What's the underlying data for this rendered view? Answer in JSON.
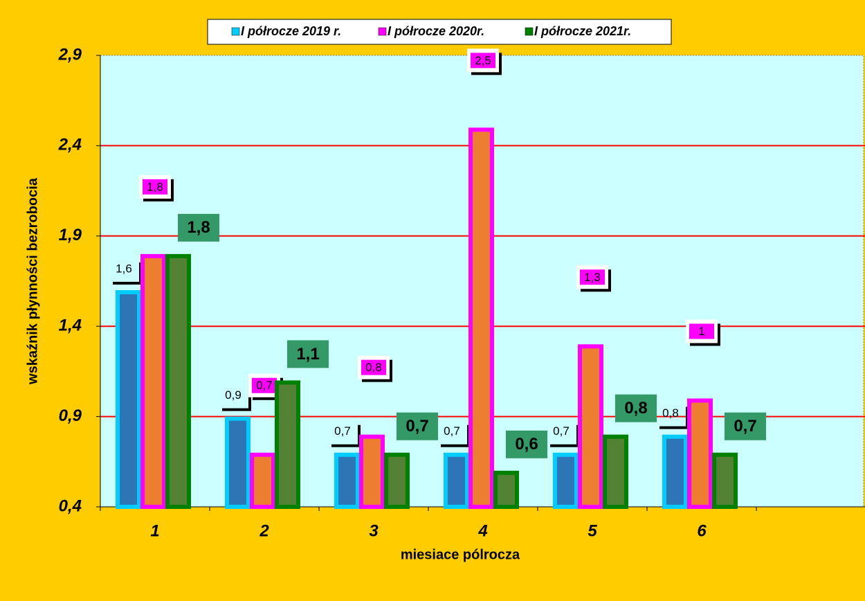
{
  "chart_data": {
    "type": "bar",
    "x_label": "miesiace pólrocza",
    "y_label": "wskaźnik płynności bezrobocia",
    "categories": [
      "1",
      "2",
      "3",
      "4",
      "5",
      "6",
      null
    ],
    "series": [
      {
        "name": "I półrocze 2019 r.",
        "color": "#2E75B6",
        "border": "#00CCFF",
        "values": [
          1.6,
          0.9,
          0.7,
          0.7,
          0.7,
          0.8,
          null
        ],
        "value_labels": [
          "1,6",
          "0,9",
          "0,7",
          "0,7",
          "0,7",
          "0,8",
          null
        ]
      },
      {
        "name": "I półrocze 2020r.",
        "color": "#ED7D31",
        "border": "#FF00FF",
        "values": [
          1.8,
          0.7,
          0.8,
          2.5,
          1.3,
          1,
          null
        ],
        "value_labels": [
          "1,8",
          "0,7",
          "0,8",
          "2,5",
          "1,3",
          "1",
          null
        ]
      },
      {
        "name": "I półrocze 2021r.",
        "color": "#548235",
        "border": "#008000",
        "values": [
          1.8,
          1.1,
          0.7,
          0.6,
          0.8,
          0.7,
          null
        ],
        "value_labels": [
          "1,8",
          "1,1",
          "0,7",
          "0,6",
          "0,8",
          "0,7",
          null
        ]
      }
    ],
    "ylim": [
      0.4,
      2.9
    ],
    "yticks": [
      {
        "value": 0.4,
        "label": "0,4"
      },
      {
        "value": 0.9,
        "label": "0,9"
      },
      {
        "value": 1.4,
        "label": "1,4"
      },
      {
        "value": 1.9,
        "label": "1,9"
      },
      {
        "value": 2.4,
        "label": "2,4"
      },
      {
        "value": 2.9,
        "label": "2,9"
      }
    ],
    "grid": true,
    "grid_color": "#FF0000",
    "legend": "top"
  }
}
